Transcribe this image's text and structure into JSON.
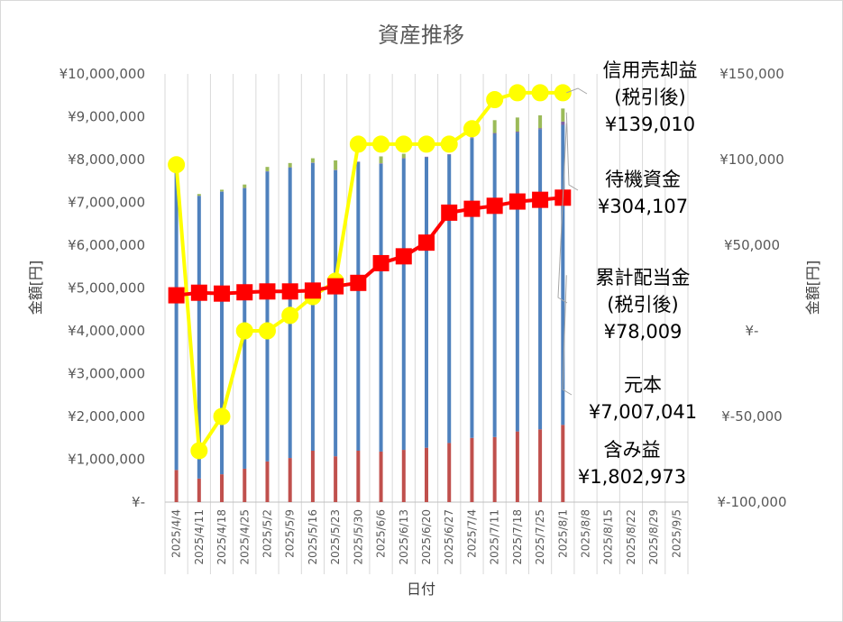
{
  "chart_data": {
    "type": "bar",
    "title": "資産推移",
    "xlabel": "日付",
    "ylabel_left": "金額[円]",
    "ylabel_right": "金額[円]",
    "ylim_left": [
      0,
      10000000
    ],
    "ylim_right": [
      -100000,
      150000
    ],
    "left_ticks": [
      "¥-",
      "¥1,000,000",
      "¥2,000,000",
      "¥3,000,000",
      "¥4,000,000",
      "¥5,000,000",
      "¥6,000,000",
      "¥7,000,000",
      "¥8,000,000",
      "¥9,000,000",
      "¥10,000,000"
    ],
    "right_ticks": [
      "¥-100,000",
      "¥-50,000",
      "¥-",
      "¥50,000",
      "¥100,000",
      "¥150,000"
    ],
    "categories": [
      "2025/4/4",
      "2025/4/11",
      "2025/4/18",
      "2025/4/25",
      "2025/5/2",
      "2025/5/9",
      "2025/5/16",
      "2025/5/23",
      "2025/5/30",
      "2025/6/6",
      "2025/6/13",
      "2025/6/20",
      "2025/6/27",
      "2025/7/4",
      "2025/7/11",
      "2025/7/18",
      "2025/7/25",
      "2025/8/1",
      "2025/8/8",
      "2025/8/15",
      "2025/8/22",
      "2025/8/29",
      "2025/9/5"
    ],
    "stack_series": [
      {
        "name": "含み益",
        "color": "#c0504d",
        "axis": "left",
        "values": [
          750000,
          550000,
          650000,
          780000,
          950000,
          1030000,
          1200000,
          1070000,
          1200000,
          1180000,
          1220000,
          1270000,
          1380000,
          1500000,
          1520000,
          1650000,
          1700000,
          1802973,
          null,
          null,
          null,
          null,
          null
        ]
      },
      {
        "name": "元本",
        "color": "#4f81bd",
        "axis": "left",
        "values": [
          7000000,
          6600000,
          6600000,
          6550000,
          6770000,
          6780000,
          6720000,
          6680000,
          6740000,
          6720000,
          6800000,
          6780000,
          6730000,
          7000000,
          7080000,
          6980000,
          7010000,
          7007041,
          null,
          null,
          null,
          null,
          null
        ]
      },
      {
        "name": "累計配当金(税引後)",
        "color": "#8064a2",
        "axis": "left",
        "values": [
          5000,
          5000,
          6000,
          7000,
          8000,
          9000,
          10000,
          11000,
          12000,
          14000,
          15000,
          16000,
          17000,
          18000,
          20000,
          22000,
          24000,
          78009,
          null,
          null,
          null,
          null,
          null
        ]
      },
      {
        "name": "待機資金",
        "color": "#9bbb59",
        "axis": "left",
        "values": [
          0,
          40000,
          40000,
          80000,
          100000,
          100000,
          100000,
          220000,
          0,
          160000,
          100000,
          0,
          0,
          0,
          300000,
          330000,
          300000,
          304107,
          null,
          null,
          null,
          null,
          null
        ]
      }
    ],
    "line_series": [
      {
        "name": "信用売却益(税引後)",
        "color": "#ffff00",
        "marker": "circle",
        "axis": "right",
        "values": [
          97000,
          -70000,
          -50000,
          0,
          0,
          9000,
          20000,
          29000,
          109000,
          109000,
          109000,
          109000,
          109000,
          118000,
          135000,
          139000,
          139000,
          139010,
          null,
          null,
          null,
          null,
          null
        ]
      },
      {
        "name": "累計",
        "color": "#ff0000",
        "marker": "square",
        "axis": "left",
        "values": [
          4830000,
          4890000,
          4870000,
          4900000,
          4920000,
          4920000,
          4940000,
          5040000,
          5120000,
          5580000,
          5740000,
          6060000,
          6760000,
          6850000,
          6920000,
          7020000,
          7060000,
          7110000,
          null,
          null,
          null,
          null,
          null
        ]
      }
    ],
    "annotations": [
      {
        "lines": [
          "信用売却益",
          "(税引後)",
          "¥139,010"
        ]
      },
      {
        "lines": [
          "待機資金",
          "¥304,107"
        ]
      },
      {
        "lines": [
          "累計配当金",
          "(税引後)",
          "¥78,009"
        ]
      },
      {
        "lines": [
          "元本",
          "¥7,007,041"
        ]
      },
      {
        "lines": [
          "含み益",
          "¥1,802,973"
        ]
      }
    ],
    "grid": false,
    "legend": "none"
  }
}
